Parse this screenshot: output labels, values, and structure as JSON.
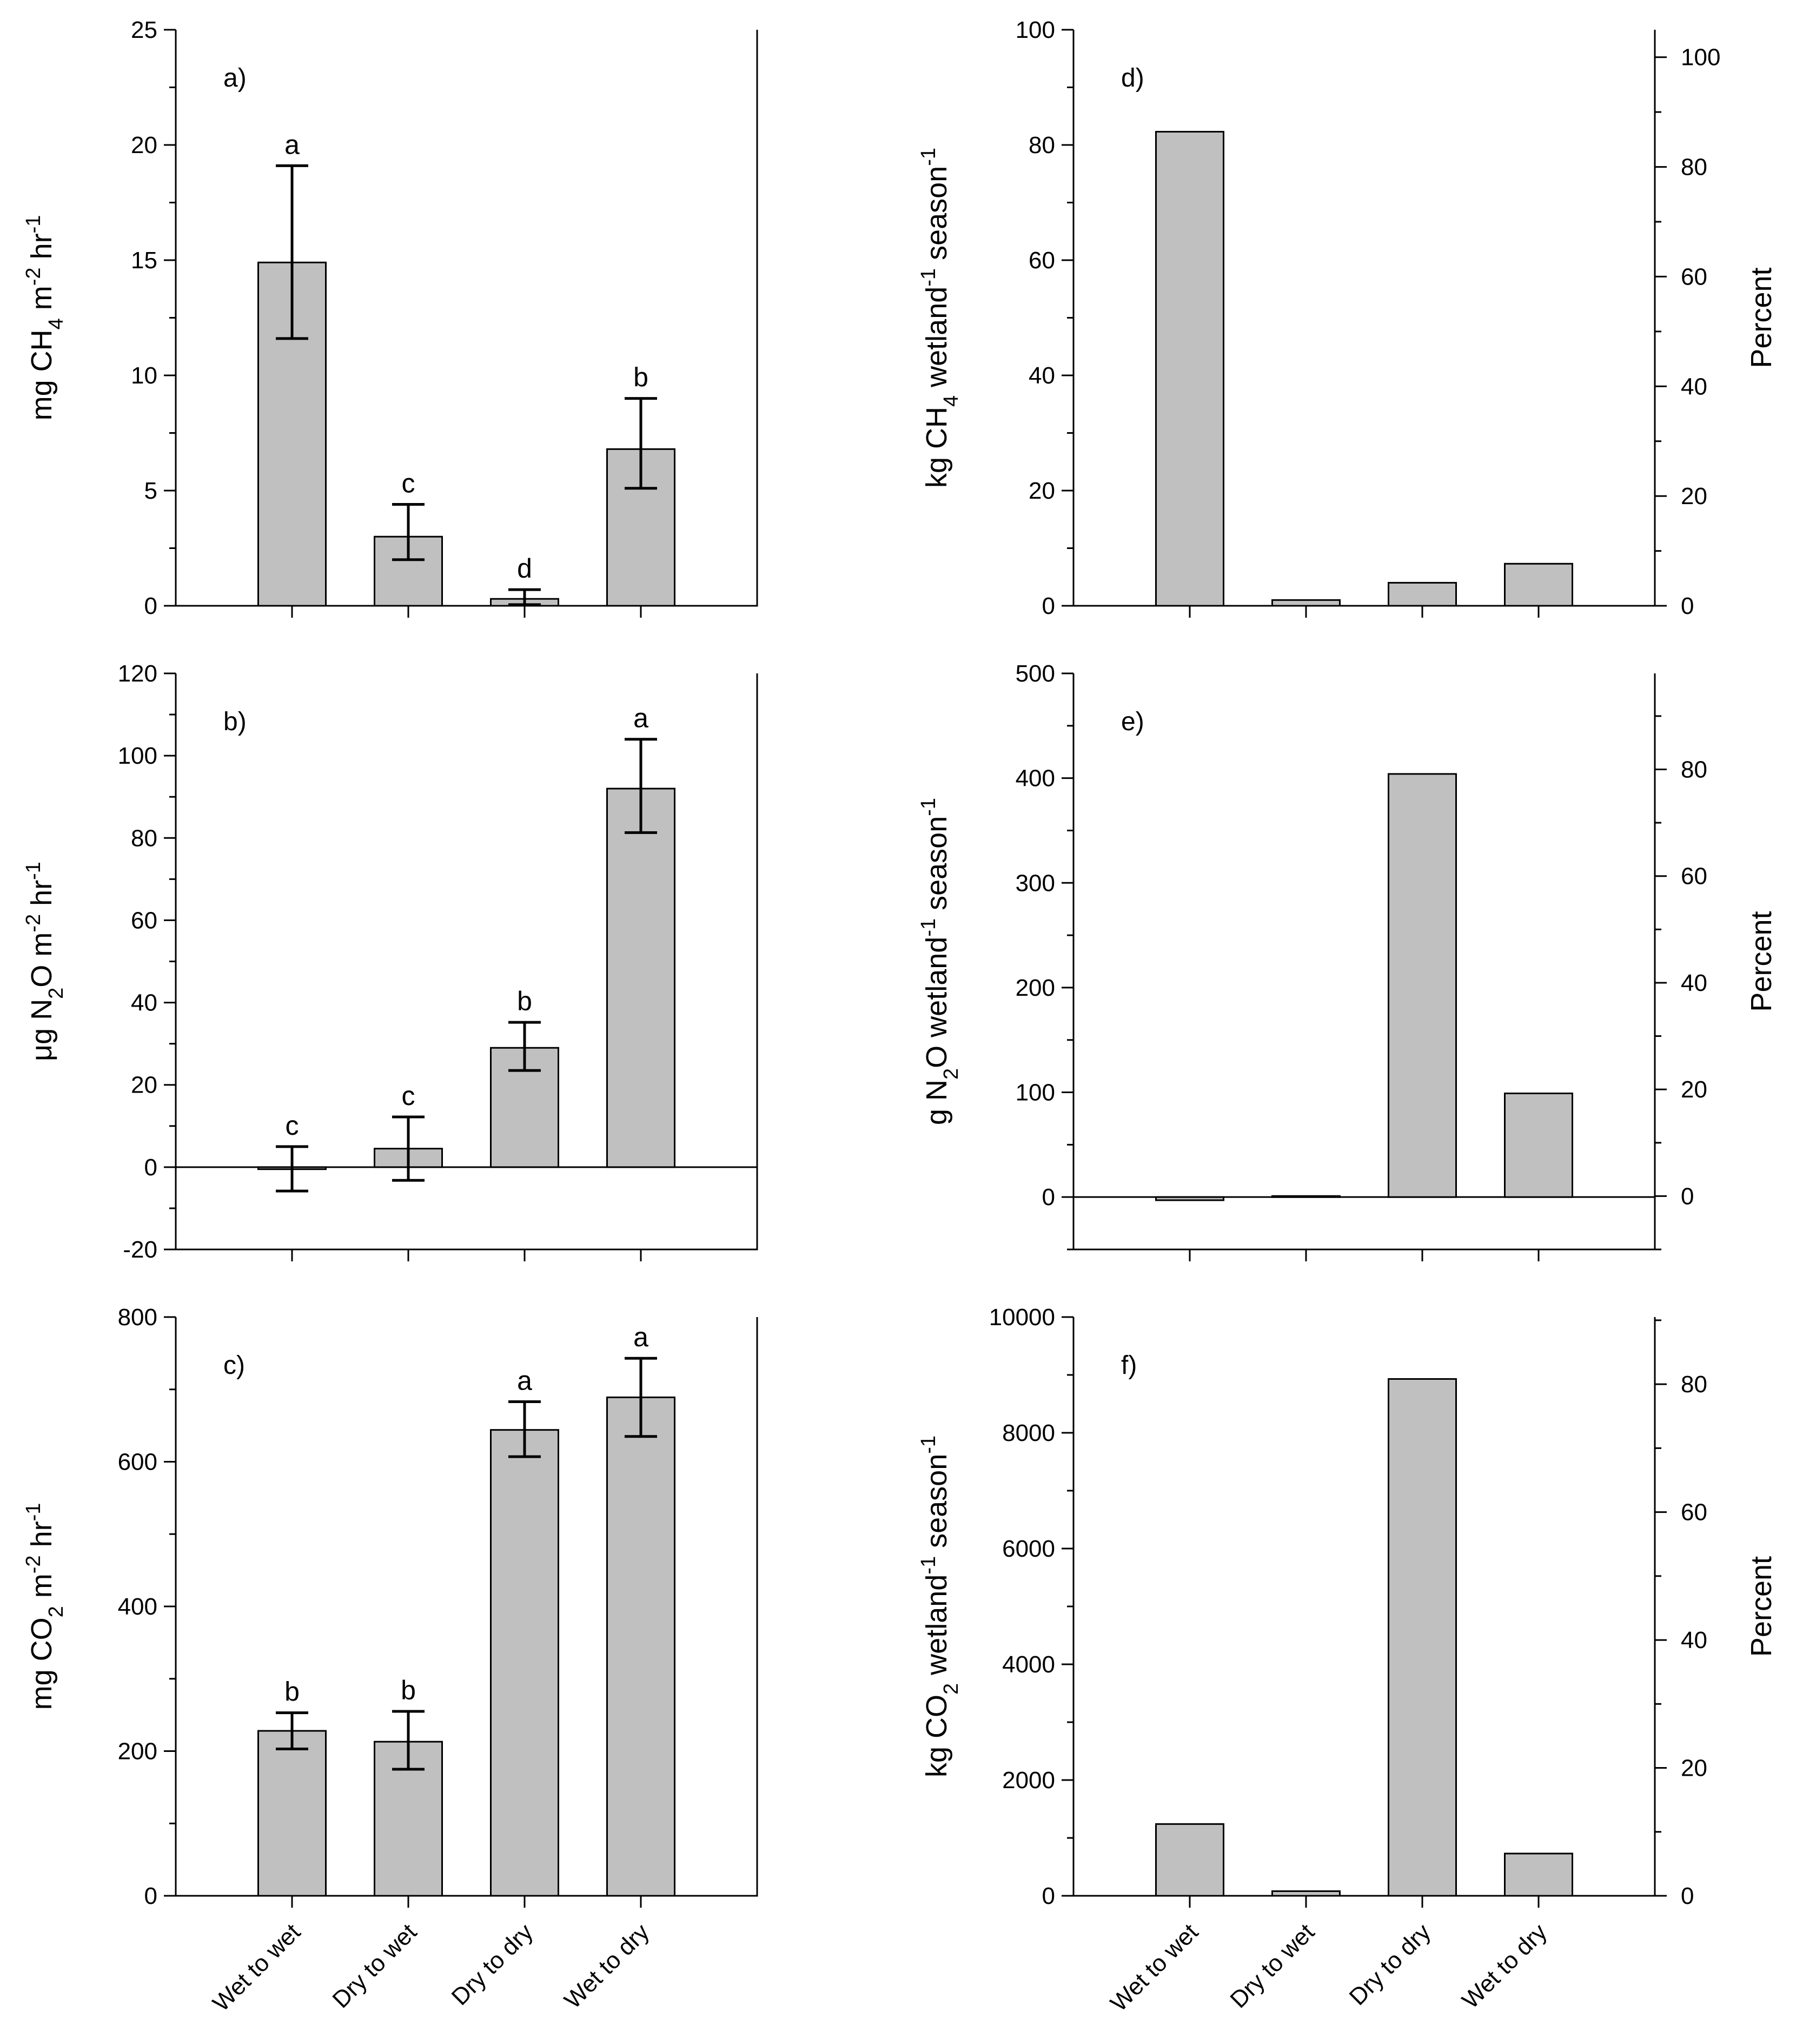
{
  "colors": {
    "bar_fill": "#c0c0c0",
    "axis": "#000000"
  },
  "categories": [
    "Wet to wet",
    "Dry to wet",
    "Dry to dry",
    "Wet to dry"
  ],
  "chart_data": [
    {
      "id": "a",
      "type": "bar",
      "panel_label": "a)",
      "ylabel": {
        "pre": "mg CH",
        "sub1": "4",
        "mid": " m",
        "sup1": "-2",
        "mid2": " hr",
        "sup2": "-1"
      },
      "ylim": [
        0,
        25
      ],
      "major_ticks": [
        0,
        5,
        10,
        15,
        20,
        25
      ],
      "minor_step": 2.5,
      "values": [
        14.9,
        3.0,
        0.3,
        6.8
      ],
      "err_low": [
        11.6,
        2.0,
        0.05,
        5.1
      ],
      "err_high": [
        19.1,
        4.4,
        0.7,
        9.0
      ],
      "letters": [
        "a",
        "c",
        "d",
        "b"
      ]
    },
    {
      "id": "b",
      "type": "bar",
      "panel_label": "b)",
      "ylabel": {
        "pre": "μg N",
        "sub1": "2",
        "mid": "O m",
        "sup1": "-2",
        "mid2": " hr",
        "sup2": "-1"
      },
      "ylim": [
        -20,
        120
      ],
      "major_ticks": [
        -20,
        0,
        20,
        40,
        60,
        80,
        100,
        120
      ],
      "minor_step": 10,
      "values": [
        -0.5,
        4.5,
        29.0,
        92.0
      ],
      "err_low": [
        -5.8,
        -3.2,
        23.5,
        81.3
      ],
      "err_high": [
        5.0,
        12.2,
        35.2,
        104.0
      ],
      "letters": [
        "c",
        "c",
        "b",
        "a"
      ]
    },
    {
      "id": "c",
      "type": "bar",
      "panel_label": "c)",
      "ylabel": {
        "pre": "mg CO",
        "sub1": "2",
        "mid": " m",
        "sup1": "-2",
        "mid2": " hr",
        "sup2": "-1"
      },
      "ylim": [
        0,
        800
      ],
      "major_ticks": [
        0,
        200,
        400,
        600,
        800
      ],
      "minor_step": 100,
      "values": [
        228,
        213,
        644,
        689
      ],
      "err_low": [
        203,
        175,
        607,
        635
      ],
      "err_high": [
        253,
        255,
        683,
        743
      ],
      "letters": [
        "b",
        "b",
        "a",
        "a"
      ]
    },
    {
      "id": "d",
      "type": "bar",
      "panel_label": "d)",
      "ylabel": {
        "pre": "kg CH",
        "sub1": "4",
        "mid": " wetland",
        "sup1": "-1",
        "mid2": " season",
        "sup2": "-1"
      },
      "ylim": [
        0,
        100
      ],
      "major_ticks": [
        0,
        20,
        40,
        60,
        80,
        100
      ],
      "minor_step": 10,
      "y2label": "Percent",
      "y2lim": [
        0,
        105
      ],
      "y2_major_ticks": [
        0,
        20,
        40,
        60,
        80,
        100
      ],
      "y2_minor_step": 10,
      "values": [
        82.3,
        1.0,
        4.0,
        7.3
      ]
    },
    {
      "id": "e",
      "type": "bar",
      "panel_label": "e)",
      "ylabel": {
        "pre": "g N",
        "sub1": "2",
        "mid": "O wetland",
        "sup1": "-1",
        "mid2": " season",
        "sup2": "-1"
      },
      "ylim": [
        -50,
        500
      ],
      "major_ticks": [
        0,
        100,
        200,
        300,
        400,
        500
      ],
      "minor_step": 50,
      "y2label": "Percent",
      "y2lim": [
        -10,
        98
      ],
      "y2_major_ticks": [
        0,
        20,
        40,
        60,
        80
      ],
      "y2_minor_step": 10,
      "values": [
        -3,
        1,
        404,
        99
      ]
    },
    {
      "id": "f",
      "type": "bar",
      "panel_label": "f)",
      "ylabel": {
        "pre": "kg CO",
        "sub1": "2",
        "mid": " wetland",
        "sup1": "-1",
        "mid2": " season",
        "sup2": "-1"
      },
      "ylim": [
        0,
        10000
      ],
      "major_ticks": [
        0,
        2000,
        4000,
        6000,
        8000,
        10000
      ],
      "minor_step": 1000,
      "y2label": "Percent",
      "y2lim": [
        0,
        90.5
      ],
      "y2_major_ticks": [
        0,
        20,
        40,
        60,
        80
      ],
      "y2_minor_step": 10,
      "values": [
        1240,
        80,
        8930,
        730
      ]
    }
  ]
}
